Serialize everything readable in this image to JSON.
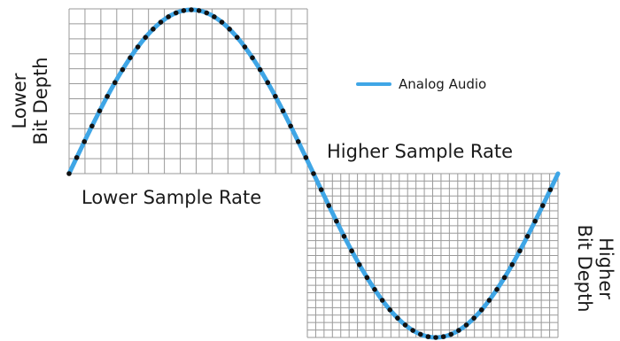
{
  "labels": {
    "left_vertical_line1": "Lower",
    "left_vertical_line2": "Bit Depth",
    "right_vertical_line1": "Higher",
    "right_vertical_line2": "Bit Depth",
    "lower_sample_rate": "Lower Sample Rate",
    "higher_sample_rate": "Higher Sample Rate"
  },
  "legend": {
    "label": "Analog Audio",
    "color": "#3fa6e6"
  },
  "grids": {
    "low": {
      "columns": 15,
      "rows": 11
    },
    "high": {
      "columns": 30,
      "rows": 22
    }
  },
  "samples": {
    "low_phase_fractions": [
      0.0,
      0.0625,
      0.125,
      0.1875,
      0.25,
      0.3125,
      0.375,
      0.4375,
      0.5,
      0.5625,
      0.625,
      0.6875,
      0.75,
      0.8125,
      0.875,
      0.9375,
      1.0,
      1.0625,
      1.125,
      1.1875,
      1.25,
      1.3125,
      1.375,
      1.4375,
      1.5,
      1.5625,
      1.625,
      1.6875,
      1.75,
      1.8125,
      1.875,
      1.9375
    ],
    "high_phase_fractions": [
      2.0,
      2.0625,
      2.125,
      2.1875,
      2.25,
      2.3125,
      2.375,
      2.4375,
      2.5,
      2.5625,
      2.625,
      2.6875,
      2.75,
      2.8125,
      2.875,
      2.9375,
      3.0,
      3.0625,
      3.125,
      3.1875,
      3.25,
      3.3125,
      3.375,
      3.4375,
      3.5,
      3.5625,
      3.625,
      3.6875,
      3.75,
      3.8125,
      3.875,
      3.9375
    ]
  },
  "colors": {
    "wave": "#3fa6e6",
    "grid": "#9a9a9a",
    "dot": "#111111",
    "text": "#1a1a1a"
  }
}
